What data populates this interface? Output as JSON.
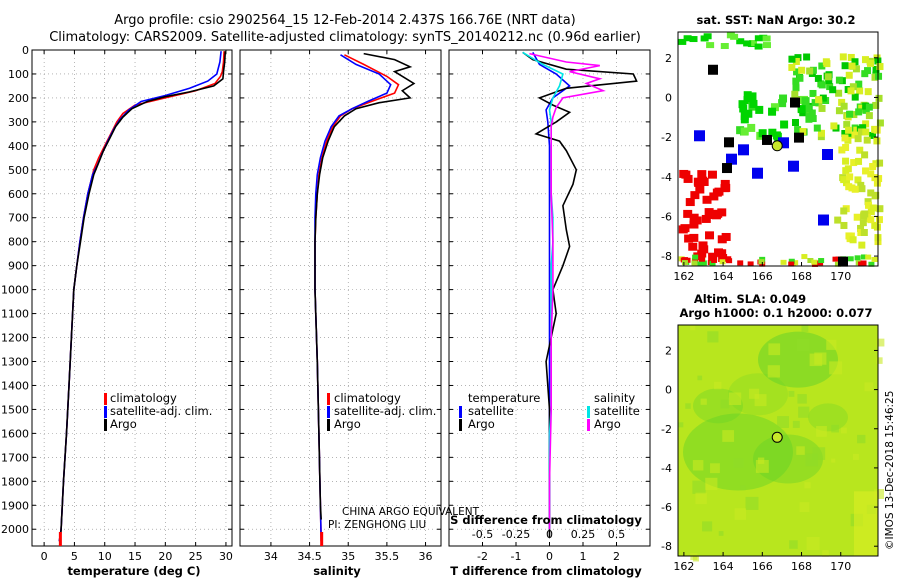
{
  "title": {
    "line1": "Argo profile: csio 2902564_15 12-Feb-2014 2.437S 166.76E (NRT data)",
    "line2": "Climatology: CARS2009. Satellite-adjusted climatology: synTS_20140212.nc (0.96d earlier)"
  },
  "colors": {
    "climatology": "#ff0000",
    "satellite": "#0000ff",
    "argo": "#000000",
    "s_satellite": "#00e5e5",
    "s_argo": "#ff00ff"
  },
  "chart_data": [
    {
      "type": "line",
      "id": "temperature",
      "xlabel": "temperature (deg C)",
      "ylabel": "",
      "xlim": [
        -2,
        31
      ],
      "ylim": [
        2070,
        0
      ],
      "xticks": [
        0,
        5,
        10,
        15,
        20,
        25,
        30
      ],
      "yticks": [
        0,
        100,
        200,
        300,
        400,
        500,
        600,
        700,
        800,
        900,
        1000,
        1100,
        1200,
        1300,
        1400,
        1500,
        1600,
        1700,
        1800,
        1900,
        2000
      ],
      "legend": [
        "climatology",
        "satellite-adj. clim.",
        "Argo"
      ],
      "series": [
        {
          "name": "climatology",
          "color": "red",
          "points": [
            [
              29.7,
              5
            ],
            [
              29.6,
              50
            ],
            [
              29.4,
              90
            ],
            [
              29.1,
              110
            ],
            [
              28.2,
              140
            ],
            [
              25,
              170
            ],
            [
              20,
              200
            ],
            [
              15,
              230
            ],
            [
              13,
              265
            ],
            [
              12,
              300
            ],
            [
              11,
              350
            ],
            [
              10,
              400
            ],
            [
              9,
              450
            ],
            [
              8.2,
              500
            ],
            [
              7.2,
              600
            ],
            [
              6.5,
              700
            ],
            [
              5.9,
              800
            ],
            [
              5.4,
              900
            ],
            [
              4.9,
              1000
            ],
            [
              4.5,
              1200
            ],
            [
              4.1,
              1400
            ],
            [
              3.7,
              1600
            ],
            [
              3.2,
              1800
            ],
            [
              2.8,
              2000
            ],
            [
              2.5,
              2050
            ]
          ]
        },
        {
          "name": "satellite-adj. clim.",
          "color": "blue",
          "points": [
            [
              29.2,
              5
            ],
            [
              29.0,
              50
            ],
            [
              28.5,
              100
            ],
            [
              27,
              130
            ],
            [
              24,
              160
            ],
            [
              20,
              190
            ],
            [
              16,
              215
            ],
            [
              14,
              250
            ],
            [
              12.5,
              290
            ],
            [
              11.5,
              330
            ],
            [
              10.5,
              380
            ],
            [
              9.6,
              430
            ],
            [
              8.8,
              480
            ],
            [
              8,
              520
            ],
            [
              7.2,
              600
            ],
            [
              6.5,
              700
            ],
            [
              5.9,
              800
            ],
            [
              5.4,
              900
            ],
            [
              4.9,
              1000
            ],
            [
              4.5,
              1200
            ],
            [
              4.1,
              1400
            ],
            [
              3.7,
              1600
            ],
            [
              3.2,
              1800
            ],
            [
              2.8,
              2000
            ],
            [
              2.5,
              2050
            ]
          ]
        },
        {
          "name": "Argo",
          "color": "black",
          "points": [
            [
              29.9,
              5
            ],
            [
              29.8,
              50
            ],
            [
              29.6,
              90
            ],
            [
              29.5,
              120
            ],
            [
              28,
              150
            ],
            [
              24,
              175
            ],
            [
              20,
              195
            ],
            [
              17,
              215
            ],
            [
              14.5,
              245
            ],
            [
              13,
              280
            ],
            [
              11.8,
              320
            ],
            [
              10.8,
              370
            ],
            [
              9.8,
              420
            ],
            [
              9,
              470
            ],
            [
              8.2,
              520
            ],
            [
              7.4,
              600
            ],
            [
              6.6,
              700
            ],
            [
              6,
              800
            ],
            [
              5.4,
              900
            ],
            [
              4.9,
              1000
            ],
            [
              4.5,
              1200
            ],
            [
              4.1,
              1400
            ],
            [
              3.7,
              1600
            ],
            [
              3.2,
              1800
            ],
            [
              2.8,
              2000
            ],
            [
              2.7,
              2035
            ]
          ]
        }
      ]
    },
    {
      "type": "line",
      "id": "salinity",
      "xlabel": "salinity",
      "xlim": [
        33.6,
        36.2
      ],
      "ylim": [
        2070,
        0
      ],
      "xticks": [
        34,
        34.5,
        35,
        35.5,
        36
      ],
      "legend": [
        "climatology",
        "satellite-adj. clim.",
        "Argo"
      ],
      "series": [
        {
          "name": "climatology",
          "color": "red",
          "points": [
            [
              34.95,
              20
            ],
            [
              35.2,
              60
            ],
            [
              35.5,
              110
            ],
            [
              35.65,
              145
            ],
            [
              35.6,
              180
            ],
            [
              35.3,
              215
            ],
            [
              35.05,
              245
            ],
            [
              34.9,
              275
            ],
            [
              34.8,
              320
            ],
            [
              34.72,
              380
            ],
            [
              34.66,
              450
            ],
            [
              34.62,
              520
            ],
            [
              34.6,
              600
            ],
            [
              34.58,
              700
            ],
            [
              34.57,
              800
            ],
            [
              34.57,
              1000
            ],
            [
              34.6,
              1300
            ],
            [
              34.62,
              1600
            ],
            [
              34.64,
              1900
            ],
            [
              34.65,
              2050
            ]
          ]
        },
        {
          "name": "satellite-adj. clim.",
          "color": "blue",
          "points": [
            [
              34.9,
              20
            ],
            [
              35.1,
              60
            ],
            [
              35.4,
              100
            ],
            [
              35.55,
              145
            ],
            [
              35.5,
              180
            ],
            [
              35.25,
              215
            ],
            [
              35.05,
              245
            ],
            [
              34.88,
              275
            ],
            [
              34.78,
              320
            ],
            [
              34.7,
              380
            ],
            [
              34.64,
              450
            ],
            [
              34.6,
              520
            ],
            [
              34.58,
              600
            ],
            [
              34.57,
              700
            ],
            [
              34.57,
              800
            ],
            [
              34.57,
              1000
            ],
            [
              34.6,
              1300
            ],
            [
              34.62,
              1600
            ],
            [
              34.64,
              1900
            ],
            [
              34.65,
              2050
            ]
          ]
        },
        {
          "name": "Argo",
          "color": "black",
          "points": [
            [
              35.2,
              15
            ],
            [
              35.6,
              40
            ],
            [
              35.8,
              70
            ],
            [
              35.6,
              90
            ],
            [
              35.85,
              140
            ],
            [
              35.7,
              170
            ],
            [
              35.8,
              200
            ],
            [
              35.4,
              220
            ],
            [
              35.1,
              245
            ],
            [
              34.95,
              275
            ],
            [
              34.82,
              320
            ],
            [
              34.74,
              380
            ],
            [
              34.67,
              450
            ],
            [
              34.63,
              520
            ],
            [
              34.6,
              600
            ],
            [
              34.58,
              700
            ],
            [
              34.57,
              800
            ],
            [
              34.57,
              1000
            ],
            [
              34.6,
              1300
            ],
            [
              34.62,
              1600
            ],
            [
              34.64,
              1900
            ],
            [
              34.65,
              1960
            ]
          ]
        }
      ]
    },
    {
      "type": "line",
      "id": "difference",
      "xlabel": "T difference from climatology",
      "xlabel2": "S difference from climatology",
      "xlim": [
        -3,
        3
      ],
      "ylim": [
        2070,
        0
      ],
      "xticks": [
        -2,
        -1,
        0,
        1,
        2
      ],
      "x2ticks_label": [
        "-0.5",
        "-0.25",
        "0",
        "0.25",
        "0.5"
      ],
      "x2ticks_pos": [
        -2,
        -1,
        0,
        1,
        2
      ],
      "legend_left_title": "temperature",
      "legend_right_title": "salinity",
      "legend": [
        "satellite",
        "Argo"
      ],
      "series": [
        {
          "name": "temperature satellite",
          "color": "blue",
          "points": [
            [
              -0.5,
              10
            ],
            [
              -0.3,
              60
            ],
            [
              0.2,
              100
            ],
            [
              0.6,
              150
            ],
            [
              0.1,
              200
            ],
            [
              -0.1,
              250
            ],
            [
              -0.05,
              300
            ],
            [
              0,
              400
            ],
            [
              0,
              500
            ],
            [
              0,
              700
            ],
            [
              0,
              900
            ],
            [
              0,
              1100
            ],
            [
              0,
              1300
            ],
            [
              0,
              1600
            ],
            [
              0,
              1900
            ],
            [
              0,
              2000
            ]
          ]
        },
        {
          "name": "temperature Argo",
          "color": "black",
          "points": [
            [
              -0.8,
              10
            ],
            [
              -0.5,
              40
            ],
            [
              0.5,
              80
            ],
            [
              2.5,
              100
            ],
            [
              2.6,
              130
            ],
            [
              0.5,
              160
            ],
            [
              -0.3,
              200
            ],
            [
              0.1,
              230
            ],
            [
              0.6,
              260
            ],
            [
              0.2,
              300
            ],
            [
              -0.4,
              350
            ],
            [
              0.3,
              380
            ],
            [
              0.5,
              420
            ],
            [
              0.8,
              500
            ],
            [
              0.7,
              560
            ],
            [
              0.4,
              650
            ],
            [
              0.5,
              750
            ],
            [
              0.6,
              820
            ],
            [
              0.4,
              900
            ],
            [
              0.1,
              1000
            ],
            [
              0.2,
              1100
            ],
            [
              -0.1,
              1300
            ],
            [
              0,
              1500
            ],
            [
              0,
              1800
            ],
            [
              0,
              2035
            ]
          ]
        },
        {
          "name": "salinity satellite",
          "color": "cyan",
          "points": [
            [
              -0.8,
              10
            ],
            [
              -0.2,
              60
            ],
            [
              0.4,
              100
            ],
            [
              0.3,
              150
            ],
            [
              0.1,
              200
            ],
            [
              0,
              250
            ],
            [
              0.05,
              300
            ],
            [
              0.05,
              400
            ],
            [
              0.05,
              500
            ],
            [
              0.05,
              600
            ],
            [
              0.1,
              700
            ],
            [
              0.1,
              800
            ],
            [
              0.05,
              900
            ],
            [
              0.05,
              1000
            ],
            [
              0.05,
              1100
            ],
            [
              0.05,
              1200
            ],
            [
              0.05,
              1300
            ],
            [
              0.05,
              1400
            ],
            [
              0.05,
              1500
            ],
            [
              0,
              1600
            ],
            [
              0,
              1800
            ],
            [
              0,
              2000
            ]
          ]
        },
        {
          "name": "salinity Argo",
          "color": "magenta",
          "points": [
            [
              -0.6,
              15
            ],
            [
              0.5,
              50
            ],
            [
              1.5,
              65
            ],
            [
              0.6,
              90
            ],
            [
              1.5,
              120
            ],
            [
              1.1,
              140
            ],
            [
              1.6,
              170
            ],
            [
              0.4,
              200
            ],
            [
              0.2,
              240
            ],
            [
              0.1,
              280
            ],
            [
              0.05,
              320
            ],
            [
              0.05,
              400
            ],
            [
              0.05,
              600
            ],
            [
              0.1,
              800
            ],
            [
              0.1,
              1000
            ],
            [
              0.05,
              1200
            ],
            [
              0.05,
              1500
            ],
            [
              0,
              1800
            ],
            [
              0,
              2000
            ]
          ]
        }
      ]
    },
    {
      "type": "heatmap",
      "id": "sst-map",
      "title": "sat. SST: NaN Argo: 30.2",
      "xticks": [
        162,
        164,
        166,
        168,
        170
      ],
      "yticks": [
        2,
        0,
        -2,
        -4,
        -6,
        -8
      ],
      "xlim": [
        161.7,
        171.9
      ],
      "ylim": [
        -8.5,
        3.3
      ],
      "argo_position": [
        166.76,
        -2.437
      ]
    },
    {
      "type": "heatmap",
      "id": "sla-map",
      "title_line1": "Altim. SLA: 0.049",
      "title_line2": "Argo h1000: 0.1 h2000: 0.077",
      "xticks": [
        162,
        164,
        166,
        168,
        170
      ],
      "yticks": [
        2,
        0,
        -2,
        -4,
        -6,
        -8
      ],
      "xlim": [
        161.7,
        171.9
      ],
      "ylim": [
        -8.5,
        3.3
      ],
      "argo_position": [
        166.76,
        -2.437
      ]
    }
  ],
  "annotations": {
    "watermark_line1": "CHINA ARGO EQUIVALENT",
    "watermark_line2": "PI: ZENGHONG LIU",
    "credit": "©IMOS 13-Dec-2018 15:46:25"
  }
}
